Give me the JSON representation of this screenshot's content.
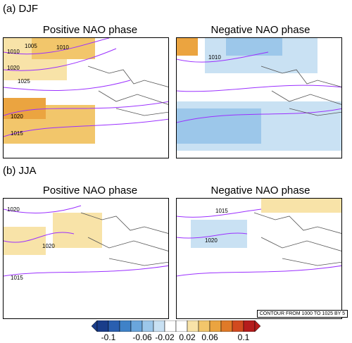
{
  "seasons": [
    {
      "label": "(a) DJF",
      "panels": [
        {
          "title": "Positive NAO phase",
          "isobars": [
            "1005",
            "1010",
            "1010",
            "1020",
            "1025",
            "1020",
            "1015"
          ]
        },
        {
          "title": "Negative NAO phase",
          "isobars": [
            "1010"
          ]
        }
      ]
    },
    {
      "label": "(b) JJA",
      "panels": [
        {
          "title": "Positive NAO phase",
          "isobars": [
            "1020",
            "1020",
            "1015"
          ]
        },
        {
          "title": "Negative NAO phase",
          "isobars": [
            "1015",
            "1020"
          ]
        }
      ]
    }
  ],
  "contour_note": "CONTOUR FROM 1000 TO 1025 BY 5",
  "chart_data": {
    "type": "heatmap",
    "colorbar": {
      "ticks": [
        "-0.1",
        "-0.06",
        "-0.02",
        "0.02",
        "0.06",
        "0.1"
      ],
      "colors": [
        "#1a3d8a",
        "#2a5fb0",
        "#3f82c8",
        "#6aa6dc",
        "#9cc7ea",
        "#c9e1f3",
        "#ffffff",
        "#ffffff",
        "#f8e3a8",
        "#f2c66b",
        "#eba440",
        "#e07a28",
        "#d24a1f",
        "#b51c1c"
      ]
    },
    "contour_color": "#9b30ff"
  }
}
